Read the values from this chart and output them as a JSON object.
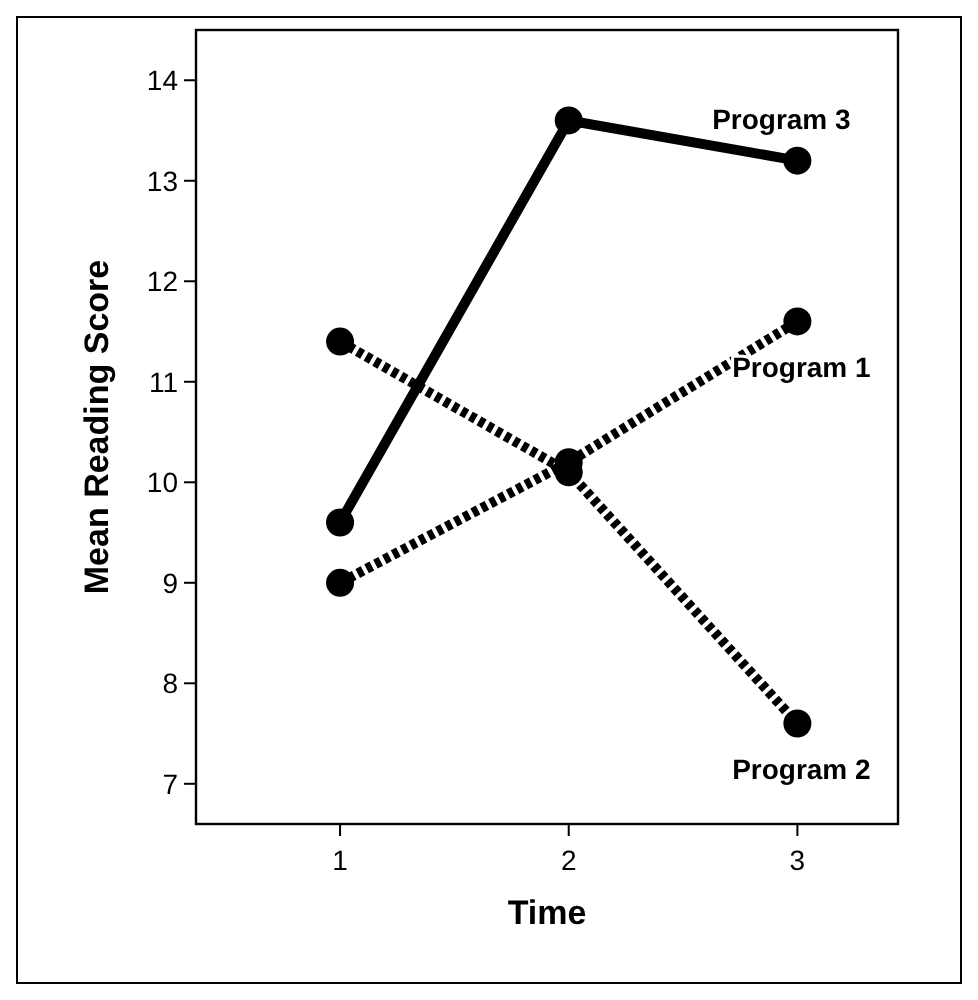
{
  "chart_data": {
    "type": "line",
    "xlabel": "Time",
    "ylabel": "Mean Reading Score",
    "x": [
      1,
      2,
      3
    ],
    "xlim": [
      0.37,
      3.44
    ],
    "xticks": [
      1,
      2,
      3
    ],
    "ylim": [
      6.6,
      14.5
    ],
    "yticks": [
      7,
      8,
      9,
      10,
      11,
      12,
      13,
      14
    ],
    "marker": "circle",
    "grid": false,
    "series": [
      {
        "name": "Program 1",
        "color": "#000000",
        "line_style": "dotted",
        "values": [
          9.0,
          10.2,
          11.6
        ]
      },
      {
        "name": "Program 2",
        "color": "#000000",
        "line_style": "dotted",
        "values": [
          11.4,
          10.1,
          7.6
        ]
      },
      {
        "name": "Program 3",
        "color": "#000000",
        "line_style": "solid",
        "values": [
          9.6,
          13.6,
          13.2
        ]
      }
    ]
  }
}
